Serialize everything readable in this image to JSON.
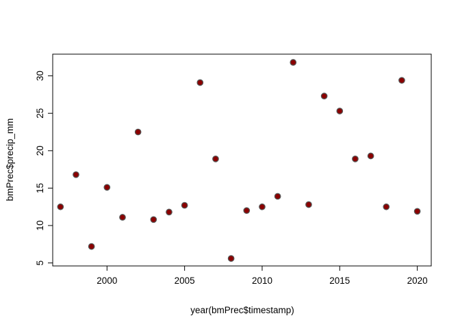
{
  "chart_data": {
    "type": "scatter",
    "title": "",
    "xlabel": "year(bmPrec$timestamp)",
    "ylabel": "bmPrec$precip_mm",
    "x": [
      1997,
      1998,
      1999,
      2000,
      2001,
      2002,
      2003,
      2004,
      2005,
      2006,
      2007,
      2008,
      2009,
      2010,
      2011,
      2012,
      2013,
      2014,
      2015,
      2016,
      2017,
      2018,
      2019,
      2020
    ],
    "y": [
      12.5,
      16.8,
      7.2,
      15.1,
      11.1,
      22.5,
      10.8,
      11.8,
      12.7,
      29.1,
      18.9,
      5.6,
      12.0,
      12.5,
      13.9,
      31.8,
      12.8,
      27.3,
      25.3,
      18.9,
      19.3,
      12.5,
      29.4,
      11.9
    ],
    "xlim": [
      1996.5,
      2020.9
    ],
    "ylim": [
      4.6,
      32.9
    ],
    "x_ticks": [
      2000,
      2005,
      2010,
      2015,
      2020
    ],
    "y_ticks": [
      5,
      10,
      15,
      20,
      25,
      30
    ],
    "point_color": "#8b0000",
    "point_stroke": "#555555",
    "grid": false,
    "legend": "none"
  }
}
